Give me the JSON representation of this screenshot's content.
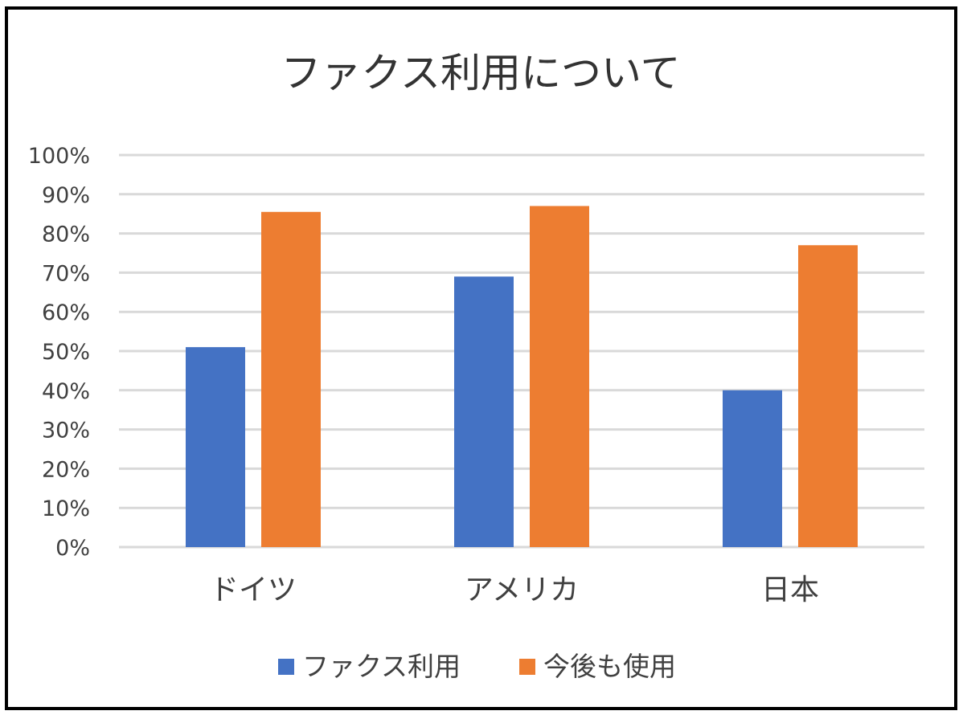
{
  "chart_data": {
    "type": "bar",
    "title": "ファクス利用について",
    "categories": [
      "ドイツ",
      "アメリカ",
      "日本"
    ],
    "series": [
      {
        "name": "ファクス利用",
        "color": "#4472c4",
        "values": [
          0.51,
          0.69,
          0.4
        ]
      },
      {
        "name": "今後も使用",
        "color": "#ed7d31",
        "values": [
          0.855,
          0.87,
          0.77
        ]
      }
    ],
    "ylim": [
      0,
      1
    ],
    "yticks": [
      "0%",
      "10%",
      "20%",
      "30%",
      "40%",
      "50%",
      "60%",
      "70%",
      "80%",
      "90%",
      "100%"
    ],
    "xlabel": "",
    "ylabel": "",
    "grid": true,
    "gridColor": "#d9d9d9",
    "legend": "bottom"
  }
}
